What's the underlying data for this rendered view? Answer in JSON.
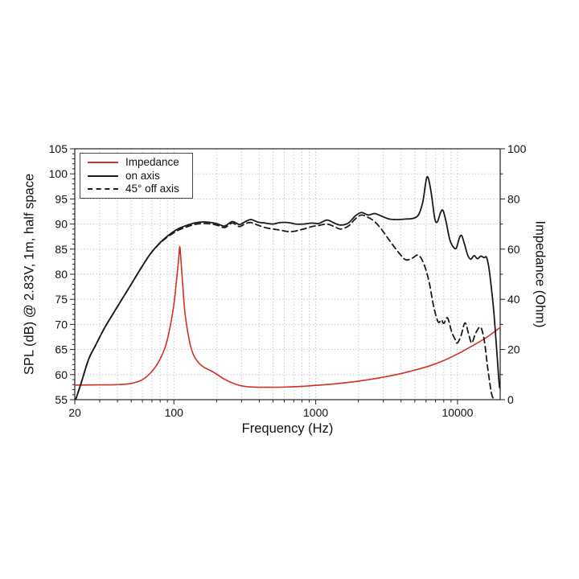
{
  "figure": {
    "background": "#ffffff"
  },
  "chart_data": {
    "type": "line",
    "title": "",
    "xlabel": "Frequency (Hz)",
    "x_scale": "log",
    "grid": {
      "style": "dotted",
      "color": "#b8b8b8",
      "horizontal_step_db": 5,
      "vertical": "log minors and majors"
    },
    "x_axis": {
      "range": [
        20,
        20000
      ],
      "ticks_labeled": [
        20,
        100,
        1000,
        10000
      ],
      "tick_labels": [
        "20",
        "100",
        "1000",
        "10000"
      ]
    },
    "left_axis": {
      "label": "SPL (dB) @ 2.83V, 1m, half space",
      "range": [
        55,
        105
      ],
      "ticks_labeled": [
        55,
        60,
        65,
        70,
        75,
        80,
        85,
        90,
        95,
        100,
        105
      ]
    },
    "right_axis": {
      "label": "Impedance (Ohm)",
      "range": [
        0,
        100
      ],
      "ticks_labeled": [
        0,
        20,
        40,
        60,
        80,
        100
      ],
      "ticks_minor": [
        10,
        30,
        50,
        70,
        90
      ]
    },
    "legend": {
      "position": "top-left",
      "entries": [
        {
          "label": "Impedance",
          "color": "#d13028",
          "style": "solid"
        },
        {
          "label": "on axis",
          "color": "#1a1a1a",
          "style": "solid"
        },
        {
          "label": "45° off axis",
          "color": "#1a1a1a",
          "style": "dashed"
        }
      ]
    },
    "series": [
      {
        "name": "Impedance",
        "axis": "right",
        "color": "#d13028",
        "style": "solid",
        "unit": "Ohm",
        "points": [
          [
            20,
            5.8
          ],
          [
            30,
            5.9
          ],
          [
            40,
            6.0
          ],
          [
            48,
            6.3
          ],
          [
            56,
            7.2
          ],
          [
            62,
            8.5
          ],
          [
            68,
            10.5
          ],
          [
            75,
            13.5
          ],
          [
            82,
            17.5
          ],
          [
            88,
            22
          ],
          [
            94,
            29
          ],
          [
            100,
            38
          ],
          [
            105,
            49
          ],
          [
            108,
            56
          ],
          [
            110,
            61
          ],
          [
            112,
            56
          ],
          [
            116,
            44
          ],
          [
            120,
            34
          ],
          [
            128,
            24
          ],
          [
            136,
            18.5
          ],
          [
            148,
            15
          ],
          [
            162,
            13
          ],
          [
            180,
            11.7
          ],
          [
            200,
            10.2
          ],
          [
            225,
            8.3
          ],
          [
            255,
            6.8
          ],
          [
            290,
            5.7
          ],
          [
            340,
            5.1
          ],
          [
            400,
            4.95
          ],
          [
            500,
            4.95
          ],
          [
            620,
            5.05
          ],
          [
            800,
            5.3
          ],
          [
            1000,
            5.7
          ],
          [
            1250,
            6.1
          ],
          [
            1600,
            6.7
          ],
          [
            2000,
            7.4
          ],
          [
            2500,
            8.2
          ],
          [
            3150,
            9.2
          ],
          [
            4000,
            10.4
          ],
          [
            5000,
            11.8
          ],
          [
            6300,
            13.4
          ],
          [
            8000,
            15.6
          ],
          [
            10000,
            18.2
          ],
          [
            12500,
            21.2
          ],
          [
            16000,
            24.8
          ],
          [
            20000,
            28.8
          ]
        ]
      },
      {
        "name": "on axis",
        "axis": "left",
        "color": "#1a1a1a",
        "style": "solid",
        "unit": "dB",
        "points": [
          [
            20,
            54.5
          ],
          [
            22,
            58
          ],
          [
            25,
            63
          ],
          [
            28,
            65.8
          ],
          [
            32,
            69
          ],
          [
            37,
            72
          ],
          [
            43,
            75
          ],
          [
            50,
            78
          ],
          [
            58,
            81
          ],
          [
            68,
            84
          ],
          [
            80,
            86.3
          ],
          [
            93,
            87.9
          ],
          [
            108,
            89.1
          ],
          [
            125,
            89.8
          ],
          [
            145,
            90.3
          ],
          [
            170,
            90.4
          ],
          [
            200,
            90.1
          ],
          [
            228,
            89.6
          ],
          [
            258,
            90.5
          ],
          [
            290,
            89.9
          ],
          [
            320,
            90.5
          ],
          [
            350,
            90.9
          ],
          [
            390,
            90.4
          ],
          [
            440,
            90.2
          ],
          [
            500,
            90.0
          ],
          [
            560,
            90.3
          ],
          [
            640,
            90.3
          ],
          [
            720,
            90.0
          ],
          [
            820,
            90.0
          ],
          [
            940,
            90.2
          ],
          [
            1050,
            90.1
          ],
          [
            1200,
            90.8
          ],
          [
            1350,
            90.2
          ],
          [
            1500,
            89.8
          ],
          [
            1700,
            90.2
          ],
          [
            1900,
            91.6
          ],
          [
            2100,
            92.3
          ],
          [
            2350,
            91.8
          ],
          [
            2600,
            92.1
          ],
          [
            2900,
            91.6
          ],
          [
            3300,
            91.0
          ],
          [
            3800,
            90.9
          ],
          [
            4300,
            91.0
          ],
          [
            4800,
            91.1
          ],
          [
            5300,
            91.8
          ],
          [
            5700,
            94.5
          ],
          [
            6100,
            99.4
          ],
          [
            6500,
            96.5
          ],
          [
            6900,
            91.2
          ],
          [
            7200,
            90.4
          ],
          [
            7600,
            92.3
          ],
          [
            7900,
            92.7
          ],
          [
            8300,
            90.5
          ],
          [
            8800,
            87.0
          ],
          [
            9300,
            85.5
          ],
          [
            9800,
            85.2
          ],
          [
            10300,
            87.2
          ],
          [
            10700,
            87.7
          ],
          [
            11200,
            86.0
          ],
          [
            11800,
            83.8
          ],
          [
            12400,
            83.0
          ],
          [
            13100,
            83.7
          ],
          [
            13800,
            83.1
          ],
          [
            14600,
            83.6
          ],
          [
            15400,
            83.3
          ],
          [
            16000,
            83.4
          ],
          [
            16600,
            81.5
          ],
          [
            17300,
            77.5
          ],
          [
            18100,
            72
          ],
          [
            19000,
            64
          ],
          [
            19700,
            58
          ],
          [
            20000,
            57.4
          ]
        ]
      },
      {
        "name": "45° off axis",
        "axis": "left",
        "color": "#1a1a1a",
        "style": "dashed",
        "unit": "dB",
        "points": [
          [
            20,
            54.5
          ],
          [
            22,
            58
          ],
          [
            25,
            63
          ],
          [
            28,
            65.8
          ],
          [
            32,
            69
          ],
          [
            37,
            72
          ],
          [
            43,
            75
          ],
          [
            50,
            78
          ],
          [
            58,
            81
          ],
          [
            68,
            84
          ],
          [
            80,
            86.2
          ],
          [
            93,
            87.7
          ],
          [
            108,
            88.8
          ],
          [
            125,
            89.5
          ],
          [
            145,
            90.0
          ],
          [
            170,
            90.1
          ],
          [
            200,
            89.8
          ],
          [
            228,
            89.3
          ],
          [
            258,
            90.2
          ],
          [
            290,
            89.5
          ],
          [
            320,
            90.1
          ],
          [
            350,
            90.3
          ],
          [
            390,
            89.8
          ],
          [
            440,
            89.3
          ],
          [
            500,
            89.0
          ],
          [
            560,
            88.8
          ],
          [
            640,
            88.5
          ],
          [
            720,
            88.6
          ],
          [
            820,
            89.0
          ],
          [
            940,
            89.5
          ],
          [
            1050,
            89.7
          ],
          [
            1200,
            90.0
          ],
          [
            1350,
            89.5
          ],
          [
            1500,
            89.0
          ],
          [
            1700,
            89.6
          ],
          [
            1900,
            91.0
          ],
          [
            2100,
            91.8
          ],
          [
            2350,
            91.3
          ],
          [
            2600,
            90.5
          ],
          [
            2900,
            89.0
          ],
          [
            3300,
            86.8
          ],
          [
            3800,
            84.5
          ],
          [
            4300,
            82.9
          ],
          [
            4800,
            83.2
          ],
          [
            5300,
            83.8
          ],
          [
            5800,
            82.0
          ],
          [
            6300,
            78.5
          ],
          [
            6800,
            73.5
          ],
          [
            7300,
            70.5
          ],
          [
            7700,
            70.9
          ],
          [
            8000,
            70.2
          ],
          [
            8500,
            71.3
          ],
          [
            9100,
            68.5
          ],
          [
            9700,
            66.8
          ],
          [
            10000,
            66.3
          ],
          [
            10600,
            67.8
          ],
          [
            11300,
            70.3
          ],
          [
            12000,
            68.0
          ],
          [
            12600,
            66.3
          ],
          [
            13400,
            68.2
          ],
          [
            14400,
            69.5
          ],
          [
            15000,
            68.5
          ],
          [
            15600,
            66.0
          ],
          [
            16300,
            61.5
          ],
          [
            17300,
            56.5
          ],
          [
            18000,
            55.0
          ],
          [
            18200,
            54.3
          ]
        ]
      }
    ]
  }
}
